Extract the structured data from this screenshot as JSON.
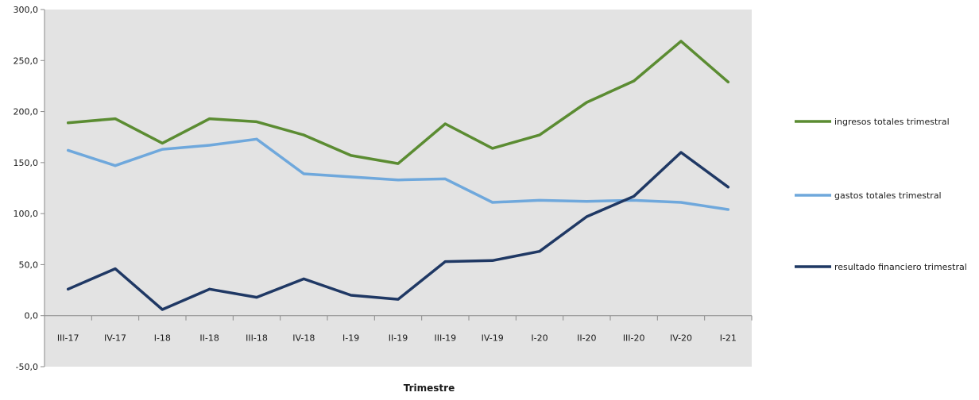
{
  "chart_data": {
    "type": "line",
    "xlabel": "Trimestre",
    "ylabel": "",
    "ylim": [
      -50,
      300
    ],
    "yticks": [
      -50,
      0,
      50,
      100,
      150,
      200,
      250,
      300
    ],
    "ytick_labels": [
      "-50,0",
      "0,0",
      "50,0",
      "100,0",
      "150,0",
      "200,0",
      "250,0",
      "300,0"
    ],
    "grid": false,
    "legend_position": "right",
    "plot_background": "#e3e3e3",
    "categories": [
      "III-17",
      "IV-17",
      "I-18",
      "II-18",
      "III-18",
      "IV-18",
      "I-19",
      "II-19",
      "III-19",
      "IV-19",
      "I-20",
      "II-20",
      "III-20",
      "IV-20",
      "I-21"
    ],
    "series": [
      {
        "name": "ingresos totales trimestral",
        "color": "#5b8c32",
        "values": [
          189,
          193,
          169,
          193,
          190,
          177,
          157,
          149,
          188,
          164,
          177,
          209,
          230,
          269,
          229
        ]
      },
      {
        "name": "gastos totales trimestral",
        "color": "#6fa8dc",
        "values": [
          162,
          147,
          163,
          167,
          173,
          139,
          136,
          133,
          134,
          111,
          113,
          112,
          113,
          111,
          104
        ]
      },
      {
        "name": "resultado financiero trimestral",
        "color": "#1f3864",
        "values": [
          26,
          46,
          6,
          26,
          18,
          36,
          20,
          16,
          53,
          54,
          63,
          97,
          117,
          160,
          126
        ]
      }
    ]
  }
}
